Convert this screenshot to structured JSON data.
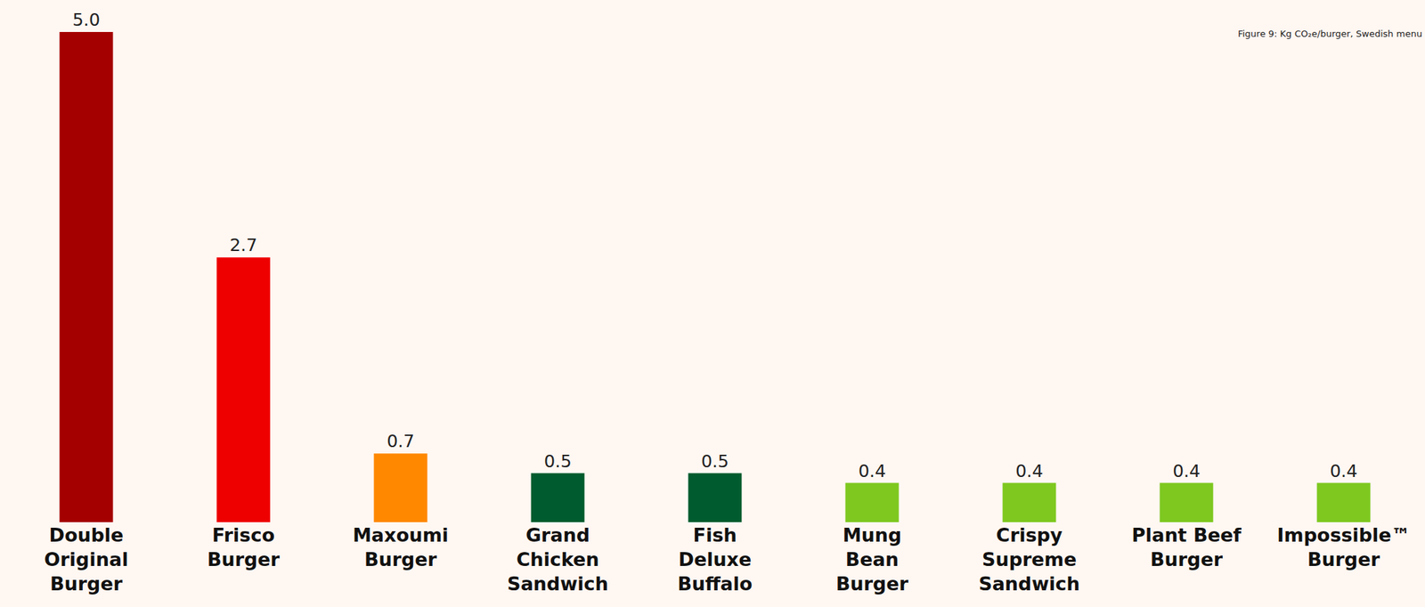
{
  "chart_data": {
    "type": "bar",
    "title": "Figure 9: Kg CO₂e/burger, Swedish menu",
    "categories": [
      "Double\nOriginal\nBurger",
      "Frisco\nBurger",
      "Maxoumi\nBurger",
      "Grand\nChicken\nSandwich",
      "Fish\nDeluxe\nBuffalo",
      "Mung\nBean\nBurger",
      "Crispy\nSupreme\nSandwich",
      "Plant Beef\nBurger",
      "Impossible™\nBurger"
    ],
    "values": [
      5.0,
      2.7,
      0.7,
      0.5,
      0.5,
      0.4,
      0.4,
      0.4,
      0.4
    ],
    "value_labels": [
      "5.0",
      "2.7",
      "0.7",
      "0.5",
      "0.5",
      "0.4",
      "0.4",
      "0.4",
      "0.4"
    ],
    "colors": [
      "#a50000",
      "#ee0000",
      "#ff8800",
      "#005c2e",
      "#005c2e",
      "#7ec820",
      "#7ec820",
      "#7ec820",
      "#7ec820"
    ],
    "ylim": [
      0,
      5.0
    ],
    "grid": false,
    "data_labels": true,
    "tick_labels": "x"
  }
}
